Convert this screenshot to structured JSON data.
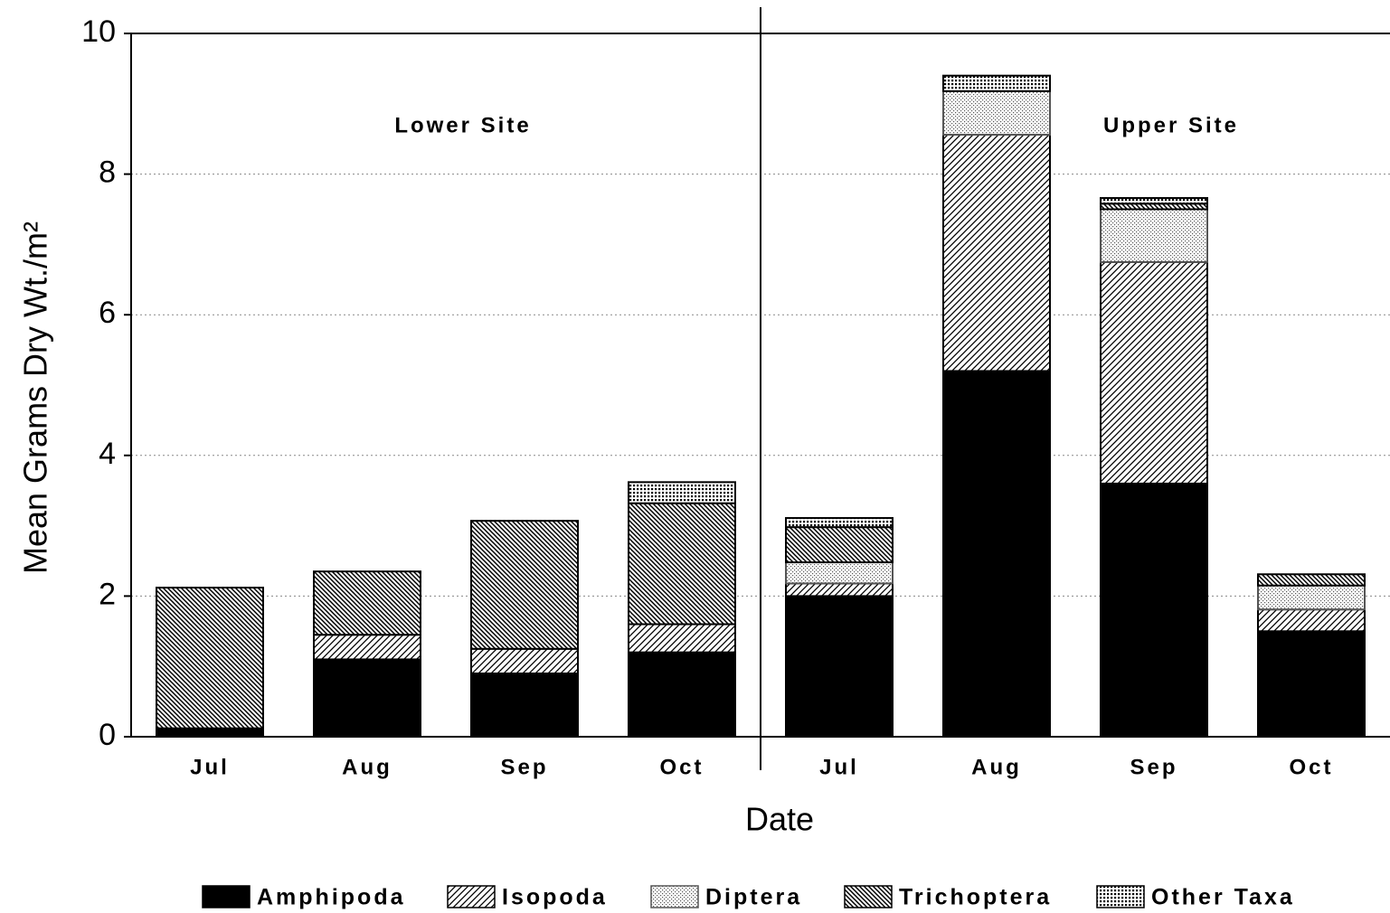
{
  "chart_data": {
    "type": "stacked_bar",
    "x_label": "Date",
    "y_label": "Mean Grams Dry Wt./m²",
    "annotations": [
      "Lower Site",
      "Upper Site"
    ],
    "categories": [
      "Jul",
      "Aug",
      "Sep",
      "Oct",
      "Jul",
      "Aug",
      "Sep",
      "Oct"
    ],
    "series": [
      {
        "name": "Amphipoda",
        "color": "#000000",
        "pattern": "solid",
        "values": [
          0.12,
          1.1,
          0.9,
          1.2,
          2.0,
          5.2,
          3.6,
          1.5
        ]
      },
      {
        "name": "Isopoda",
        "color": "#000000",
        "pattern": "diag",
        "values": [
          0,
          0.35,
          0.35,
          0.4,
          0.18,
          3.36,
          3.15,
          0.31
        ]
      },
      {
        "name": "Diptera",
        "color": "#555555",
        "pattern": "dots",
        "values": [
          0,
          0,
          0,
          0,
          0.3,
          0.62,
          0.75,
          0.34
        ]
      },
      {
        "name": "Trichoptera",
        "color": "#000000",
        "pattern": "back",
        "values": [
          2.0,
          0.9,
          1.82,
          1.72,
          0.5,
          0,
          0.08,
          0.16
        ]
      },
      {
        "name": "Other Taxa",
        "color": "#000000",
        "pattern": "grid",
        "values": [
          0,
          0,
          0,
          0.3,
          0.13,
          0.22,
          0.08,
          0
        ]
      }
    ],
    "ylim": [
      0,
      10
    ],
    "yticks": [
      0,
      2,
      4,
      6,
      8,
      10
    ],
    "grid": true,
    "legend": "bottom"
  }
}
